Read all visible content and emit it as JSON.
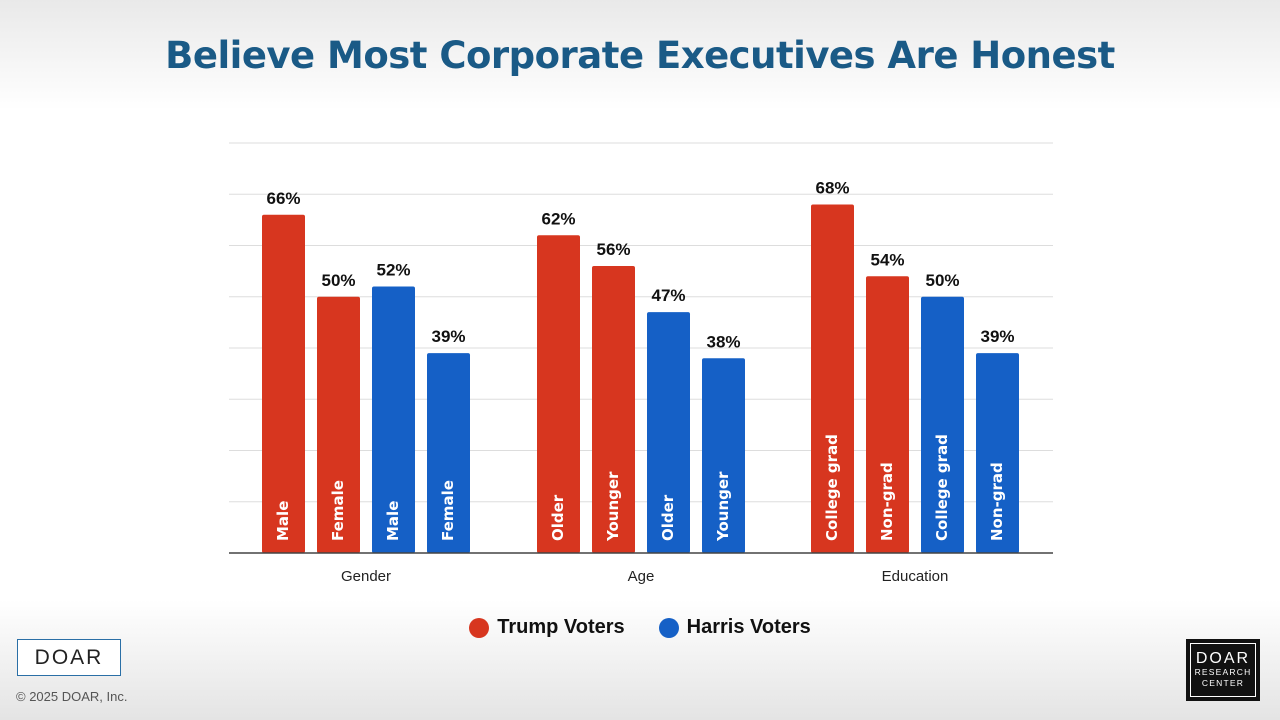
{
  "title": "Believe Most Corporate Executives Are Honest",
  "colors": {
    "trump": "#d7361f",
    "harris": "#1560c6",
    "title": "#1a5a86",
    "grid": "#dddddd",
    "axis": "#444444"
  },
  "legend": [
    {
      "label": "Trump Voters",
      "color": "#d7361f"
    },
    {
      "label": "Harris Voters",
      "color": "#1560c6"
    }
  ],
  "chart_data": {
    "type": "bar",
    "title": "Believe Most Corporate Executives Are Honest",
    "xlabel": "",
    "ylabel": "",
    "ylim": [
      0,
      80
    ],
    "grid": true,
    "legend_position": "bottom",
    "groups": [
      {
        "name": "Gender",
        "bars": [
          {
            "label": "Male",
            "series": "Trump Voters",
            "value": 66
          },
          {
            "label": "Female",
            "series": "Trump Voters",
            "value": 50
          },
          {
            "label": "Male",
            "series": "Harris Voters",
            "value": 52
          },
          {
            "label": "Female",
            "series": "Harris Voters",
            "value": 39
          }
        ]
      },
      {
        "name": "Age",
        "bars": [
          {
            "label": "Older",
            "series": "Trump Voters",
            "value": 62
          },
          {
            "label": "Younger",
            "series": "Trump Voters",
            "value": 56
          },
          {
            "label": "Older",
            "series": "Harris Voters",
            "value": 47
          },
          {
            "label": "Younger",
            "series": "Harris Voters",
            "value": 38
          }
        ]
      },
      {
        "name": "Education",
        "bars": [
          {
            "label": "College grad",
            "series": "Trump Voters",
            "value": 68
          },
          {
            "label": "Non-grad",
            "series": "Trump Voters",
            "value": 54
          },
          {
            "label": "College grad",
            "series": "Harris Voters",
            "value": 50
          },
          {
            "label": "Non-grad",
            "series": "Harris Voters",
            "value": 39
          }
        ]
      }
    ]
  },
  "footer": {
    "logo_left": "DOAR",
    "copyright": "© 2025 DOAR, Inc.",
    "logo_right_line1": "DOAR",
    "logo_right_line2": "RESEARCH",
    "logo_right_line3": "CENTER"
  }
}
